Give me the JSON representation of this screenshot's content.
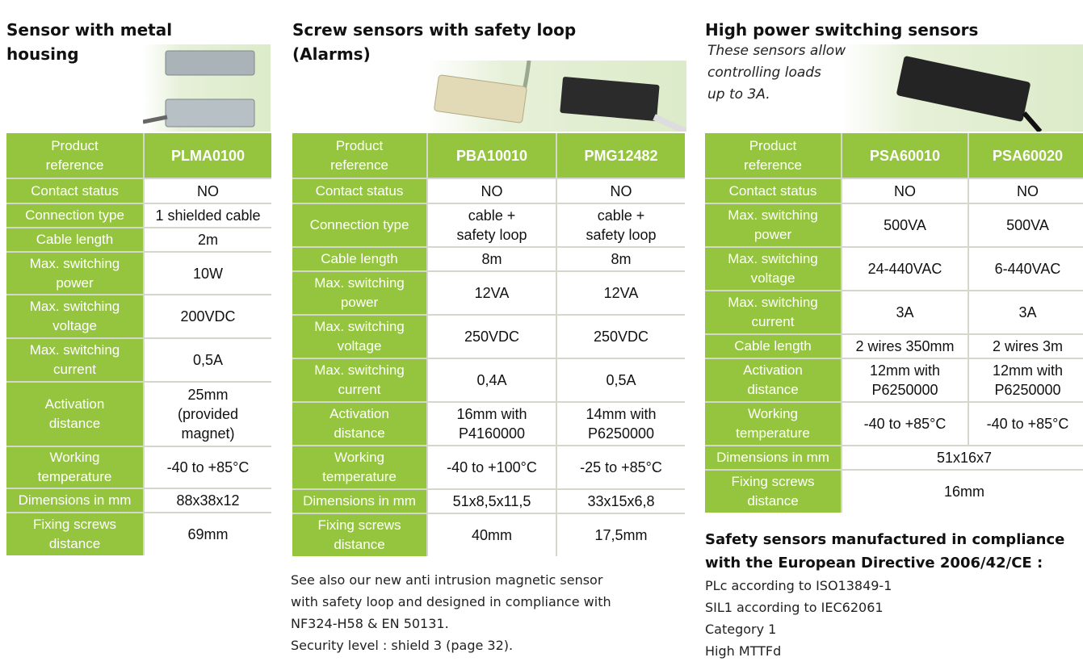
{
  "sections": [
    {
      "title": "Sensor with metal\nhousing",
      "table": {
        "rows": [
          [
            "Product\nreference",
            "PLMA0100"
          ],
          [
            "Contact status",
            "NO"
          ],
          [
            "Connection type",
            "1 shielded cable"
          ],
          [
            "Cable length",
            "2m"
          ],
          [
            "Max. switching\npower",
            "10W"
          ],
          [
            "Max. switching\nvoltage",
            "200VDC"
          ],
          [
            "Max. switching\ncurrent",
            "0,5A"
          ],
          [
            "Activation\ndistance",
            "25mm\n(provided\nmagnet)"
          ],
          [
            "Working\ntemperature",
            "-40 to +85°C"
          ],
          [
            "Dimensions in mm",
            "88x38x12"
          ],
          [
            "Fixing screws\ndistance",
            "69mm"
          ]
        ]
      }
    },
    {
      "title": "Screw sensors with safety loop\n(Alarms)",
      "table": {
        "rows": [
          [
            "Product\nreference",
            "PBA10010",
            "PMG12482"
          ],
          [
            "Contact status",
            "NO",
            "NO"
          ],
          [
            "Connection type",
            "cable +\nsafety loop",
            "cable +\nsafety loop"
          ],
          [
            "Cable length",
            "8m",
            "8m"
          ],
          [
            "Max. switching\npower",
            "12VA",
            "12VA"
          ],
          [
            "Max. switching\nvoltage",
            "250VDC",
            "250VDC"
          ],
          [
            "Max. switching\ncurrent",
            "0,4A",
            "0,5A"
          ],
          [
            "Activation\ndistance",
            "16mm with\nP4160000",
            "14mm with\nP6250000"
          ],
          [
            "Working\ntemperature",
            "-40 to +100°C",
            "-25 to +85°C"
          ],
          [
            "Dimensions in mm",
            "51x8,5x11,5",
            "33x15x6,8"
          ],
          [
            "Fixing screws\ndistance",
            "40mm",
            "17,5mm"
          ]
        ]
      },
      "note": [
        "See also our new anti intrusion magnetic sensor",
        "with safety loop  and designed in compliance with",
        "NF324-H58 & EN 50131.",
        "Security level : shield 3 (page 32)."
      ]
    },
    {
      "title": "High power switching sensors",
      "subtitle": "These sensors allow\ncontrolling loads\nup to 3A.",
      "table": {
        "rows": [
          [
            "Product\nreference",
            "PSA60010",
            "PSA60020"
          ],
          [
            "Contact status",
            "NO",
            "NO"
          ],
          [
            "Max. switching\npower",
            "500VA",
            "500VA"
          ],
          [
            "Max. switching\nvoltage",
            "24-440VAC",
            "6-440VAC"
          ],
          [
            "Max. switching\ncurrent",
            "3A",
            "3A"
          ],
          [
            "Cable length",
            "2 wires 350mm",
            "2 wires 3m"
          ],
          [
            "Activation\ndistance",
            "12mm with\nP6250000",
            "12mm with\nP6250000"
          ],
          [
            "Working\ntemperature",
            "-40 to +85°C",
            "-40 to +85°C"
          ],
          [
            "Dimensions in mm",
            "51x16x7"
          ],
          [
            "Fixing screws\ndistance",
            "16mm"
          ]
        ]
      },
      "compliance": {
        "heading": "Safety sensors manufactured in compliance\nwith the European Directive 2006/42/CE :",
        "lines": [
          "PLc according to ISO13849-1",
          "SIL1 according to IEC62061",
          "Category 1",
          "High MTTFd"
        ]
      }
    }
  ]
}
